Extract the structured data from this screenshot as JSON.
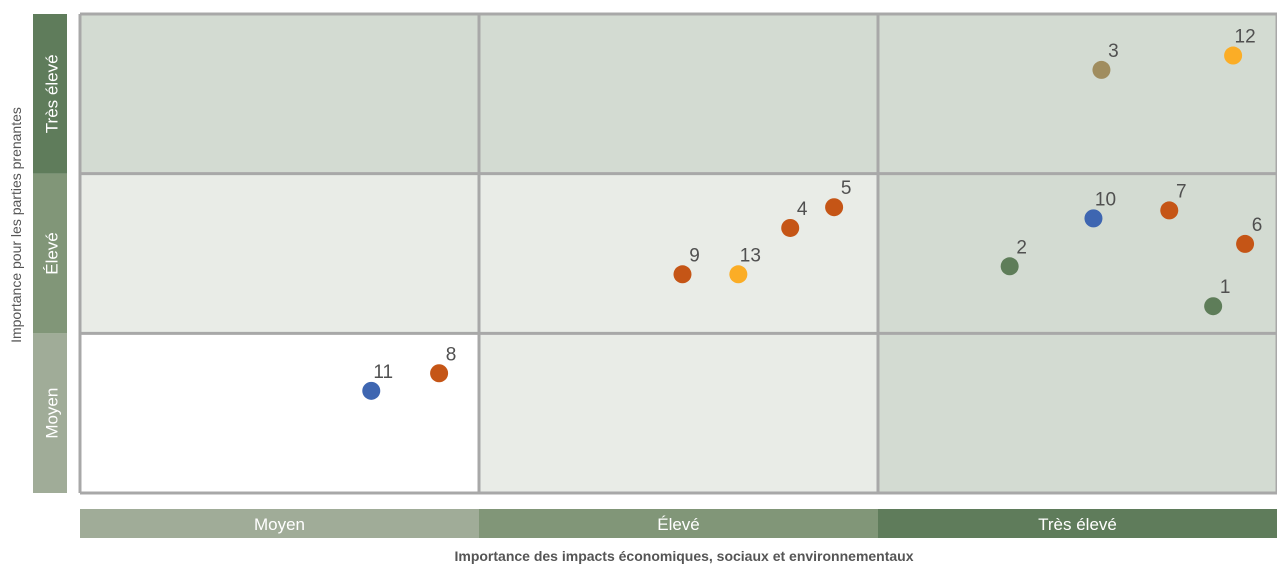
{
  "chart_data": {
    "type": "scatter",
    "xlabel": "Importance des impacts économiques, sociaux et environnementaux",
    "ylabel": "Importance pour les parties prenantes",
    "x_categories": [
      "Moyen",
      "Élevé",
      "Très élevé"
    ],
    "y_categories": [
      "Moyen",
      "Élevé",
      "Très élevé"
    ],
    "xlim": [
      0,
      3
    ],
    "ylim": [
      0,
      3
    ],
    "grid": true,
    "colors": {
      "background_low": "#ffffff",
      "background_mid": "#e9ece7",
      "background_high": "#d3dbd2",
      "grid": "#a8a8a8",
      "band_moyen": "#a0ac98",
      "band_eleve": "#819678",
      "band_tres_eleve": "#5f7c5b"
    },
    "points": [
      {
        "label": "1",
        "x": 2.84,
        "y": 1.17,
        "color": "#5e7d59"
      },
      {
        "label": "2",
        "x": 2.33,
        "y": 1.42,
        "color": "#5e7d59"
      },
      {
        "label": "3",
        "x": 2.56,
        "y": 2.65,
        "color": "#a08d5f"
      },
      {
        "label": "4",
        "x": 1.78,
        "y": 1.66,
        "color": "#c55516"
      },
      {
        "label": "5",
        "x": 1.89,
        "y": 1.79,
        "color": "#c55516"
      },
      {
        "label": "6",
        "x": 2.92,
        "y": 1.56,
        "color": "#c55516"
      },
      {
        "label": "7",
        "x": 2.73,
        "y": 1.77,
        "color": "#c55516"
      },
      {
        "label": "8",
        "x": 0.9,
        "y": 0.75,
        "color": "#c55516"
      },
      {
        "label": "9",
        "x": 1.51,
        "y": 1.37,
        "color": "#c55516"
      },
      {
        "label": "10",
        "x": 2.54,
        "y": 1.72,
        "color": "#3e66b1"
      },
      {
        "label": "11",
        "x": 0.73,
        "y": 0.64,
        "color": "#3e66b1"
      },
      {
        "label": "12",
        "x": 2.89,
        "y": 2.74,
        "color": "#fbad26"
      },
      {
        "label": "13",
        "x": 1.65,
        "y": 1.37,
        "color": "#fbad26"
      }
    ]
  }
}
